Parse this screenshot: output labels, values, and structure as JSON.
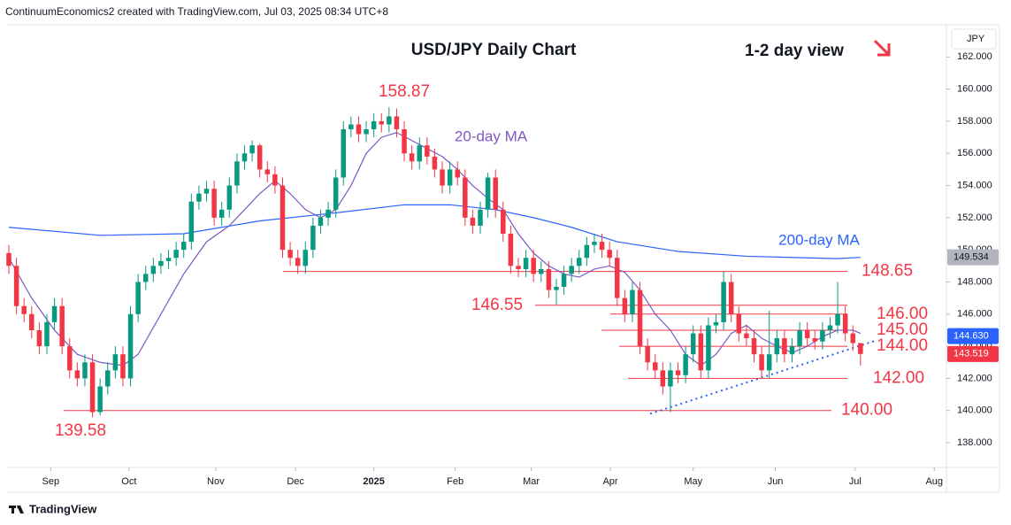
{
  "header": "ContinuumEconomics2 created with TradingView.com, Jul 03, 2025 08:34 UTC+8",
  "footer": "TradingView",
  "chart_data": {
    "type": "candlestick",
    "title": "USD/JPY Daily Chart",
    "subtitle": "1-2 day view",
    "y_axis_label": "JPY",
    "up_color": "#089981",
    "down_color": "#f23645",
    "open": [
      149.8,
      149.0,
      146.5,
      146.0,
      145.0,
      144.0,
      145.5,
      146.5,
      144.0,
      142.5,
      142.0,
      143.0,
      139.9,
      141.5,
      142.5,
      143.5,
      142.0,
      146.0,
      148.0,
      148.5,
      149.0,
      149.3,
      149.5,
      150.0,
      150.5,
      153.0,
      153.5,
      153.8,
      152.0,
      152.5,
      154.0,
      155.5,
      156.0,
      156.5,
      155.0,
      154.7,
      154.0,
      150.0,
      149.5,
      149.0,
      150.0,
      151.5,
      152.0,
      152.5,
      154.5,
      157.5,
      157.8,
      157.2,
      157.5,
      158.0,
      157.8,
      158.3,
      157.5,
      156.0,
      155.5,
      156.5,
      155.8,
      155.0,
      154.0,
      155.0,
      154.5,
      152.0,
      151.5,
      152.5,
      154.5,
      152.5,
      151.0,
      149.0,
      148.8,
      149.5,
      148.5,
      148.8,
      147.5,
      147.7,
      148.5,
      149.0,
      149.5,
      150.3,
      150.5,
      150.0,
      149.5,
      147.0,
      146.0,
      147.5,
      144.0,
      143.0,
      142.5,
      141.5,
      142.5,
      142.2,
      143.5,
      144.8,
      142.5,
      145.3,
      145.5,
      148.0,
      146.0,
      144.8,
      144.5,
      143.5,
      142.5,
      143.5,
      144.5,
      143.5,
      144.0,
      145.0,
      144.5,
      144.3,
      145.0,
      145.3,
      146.0,
      144.8,
      144.2
    ],
    "high": [
      150.3,
      149.5,
      147.0,
      146.5,
      145.5,
      146.0,
      147.0,
      147.0,
      144.5,
      143.0,
      143.5,
      143.5,
      142.0,
      143.0,
      144.0,
      144.0,
      146.5,
      148.5,
      149.0,
      149.5,
      149.8,
      150.0,
      150.5,
      151.0,
      153.5,
      154.0,
      154.3,
      154.3,
      153.0,
      154.5,
      156.0,
      156.5,
      156.8,
      156.6,
      155.5,
      155.2,
      154.5,
      150.5,
      150.0,
      150.5,
      152.0,
      152.5,
      153.0,
      155.0,
      158.0,
      158.3,
      158.3,
      158.0,
      158.5,
      158.5,
      158.87,
      158.8,
      158.0,
      156.5,
      157.0,
      157.0,
      156.3,
      155.5,
      155.5,
      155.5,
      155.0,
      152.5,
      153.0,
      154.8,
      155.0,
      153.0,
      151.5,
      149.5,
      150.0,
      150.0,
      149.3,
      149.3,
      148.2,
      149.0,
      149.5,
      150.0,
      150.8,
      151.0,
      151.0,
      150.5,
      150.0,
      147.5,
      148.0,
      148.0,
      144.5,
      143.5,
      143.0,
      143.0,
      143.0,
      144.0,
      145.3,
      145.3,
      145.8,
      146.0,
      148.65,
      148.5,
      146.5,
      145.3,
      145.0,
      144.0,
      146.2,
      145.0,
      145.0,
      144.5,
      145.5,
      145.5,
      145.0,
      145.5,
      145.8,
      148.0,
      146.5,
      145.3,
      144.2
    ],
    "low": [
      148.5,
      146.0,
      145.5,
      144.5,
      143.5,
      143.5,
      145.0,
      143.5,
      142.0,
      141.5,
      141.5,
      139.58,
      139.7,
      141.0,
      142.0,
      141.5,
      141.5,
      145.5,
      147.5,
      148.0,
      148.5,
      148.8,
      149.0,
      149.5,
      150.0,
      152.5,
      153.0,
      151.5,
      151.5,
      152.0,
      153.5,
      155.0,
      155.5,
      154.5,
      154.2,
      153.5,
      149.5,
      149.0,
      148.5,
      148.5,
      149.5,
      151.0,
      151.5,
      152.0,
      154.0,
      157.0,
      156.7,
      156.7,
      157.0,
      157.3,
      157.3,
      157.0,
      155.5,
      155.0,
      155.0,
      155.3,
      154.5,
      153.5,
      153.5,
      154.0,
      151.5,
      151.0,
      151.0,
      152.0,
      152.0,
      150.5,
      148.5,
      148.3,
      148.3,
      148.0,
      148.0,
      147.0,
      146.6,
      147.2,
      148.0,
      148.5,
      149.0,
      149.8,
      149.5,
      149.0,
      146.5,
      145.5,
      145.5,
      143.5,
      142.5,
      142.0,
      141.0,
      139.9,
      141.7,
      141.7,
      143.0,
      142.0,
      142.0,
      144.8,
      145.0,
      145.5,
      144.3,
      144.0,
      143.0,
      142.0,
      142.0,
      143.0,
      143.0,
      143.0,
      143.5,
      144.0,
      143.8,
      143.8,
      144.5,
      144.8,
      144.3,
      143.7,
      142.8
    ],
    "close": [
      149.0,
      146.5,
      146.0,
      145.0,
      144.0,
      145.5,
      146.5,
      144.0,
      142.5,
      142.0,
      143.0,
      139.9,
      141.5,
      142.5,
      143.5,
      142.0,
      146.0,
      148.0,
      148.5,
      149.0,
      149.3,
      149.5,
      150.0,
      150.5,
      153.0,
      153.5,
      153.8,
      152.0,
      152.5,
      154.0,
      155.5,
      156.0,
      156.5,
      155.0,
      154.7,
      154.0,
      150.0,
      149.5,
      149.0,
      150.0,
      151.5,
      152.0,
      152.5,
      154.5,
      157.5,
      157.8,
      157.2,
      157.5,
      158.0,
      157.8,
      158.3,
      157.5,
      156.0,
      155.5,
      156.5,
      155.8,
      155.0,
      154.0,
      155.0,
      154.5,
      152.0,
      151.5,
      152.5,
      154.5,
      152.5,
      151.0,
      149.0,
      148.8,
      149.5,
      148.5,
      148.8,
      147.5,
      147.7,
      148.5,
      149.0,
      149.5,
      150.3,
      150.5,
      150.0,
      149.5,
      147.0,
      146.0,
      147.5,
      144.0,
      143.0,
      142.5,
      141.5,
      142.5,
      142.2,
      143.5,
      144.8,
      142.5,
      145.3,
      145.5,
      148.0,
      146.0,
      144.8,
      144.5,
      143.5,
      142.5,
      143.5,
      144.5,
      143.5,
      144.0,
      145.0,
      144.5,
      144.3,
      145.0,
      145.3,
      146.0,
      144.8,
      144.2,
      143.52
    ],
    "series": [
      {
        "name": "20-day MA",
        "color": "#7e57c2",
        "x": [
          0,
          3,
          6,
          9,
          12,
          15,
          17,
          20,
          23,
          26,
          29,
          31,
          33,
          35,
          37,
          39,
          41,
          43,
          45,
          47,
          49,
          51,
          53,
          55,
          57,
          59,
          61,
          63,
          65,
          67,
          69,
          71,
          73,
          75,
          77,
          79,
          81,
          83,
          85,
          87,
          89,
          91,
          93,
          95,
          97,
          99,
          101,
          103,
          105,
          107,
          109,
          111,
          112
        ],
        "values": [
          149.5,
          147,
          145,
          143.5,
          143.0,
          142.8,
          143.5,
          146,
          148.5,
          150.5,
          151.5,
          152.5,
          153.5,
          154.3,
          153.5,
          152.5,
          152.0,
          152.5,
          154,
          156,
          157,
          157.3,
          156.8,
          156.3,
          155.8,
          155.0,
          154.0,
          153.2,
          152.5,
          151.0,
          149.8,
          149.0,
          148.5,
          148.3,
          148.8,
          149.0,
          148.6,
          147.5,
          146.0,
          145.0,
          143.5,
          142.8,
          143.5,
          144.8,
          145.3,
          144.5,
          144.0,
          143.6,
          144.0,
          144.6,
          145.0,
          145.0,
          144.8
        ]
      },
      {
        "name": "200-day MA",
        "color": "#2962ff",
        "x": [
          0,
          12,
          23,
          33,
          43,
          52,
          58,
          64,
          69,
          74,
          80,
          88,
          97,
          109,
          112
        ],
        "values": [
          151.4,
          150.9,
          151.0,
          151.8,
          152.3,
          152.8,
          152.8,
          152.5,
          152.0,
          151.4,
          150.5,
          149.9,
          149.6,
          149.45,
          149.53
        ]
      }
    ],
    "annotations": {
      "high": 158.87,
      "low": 139.58
    },
    "levels": [
      148.65,
      146.55,
      {
        "value": 146,
        "label": "146.00"
      },
      {
        "value": 145,
        "label": "145.00"
      },
      {
        "value": 144,
        "label": "144.00"
      },
      {
        "value": 142,
        "label": "142.00"
      },
      {
        "value": 140,
        "label": "140.00"
      }
    ],
    "level_color": "#f23645",
    "price_labels": [
      149.534,
      {
        "value": 144.63,
        "label": "144.630"
      },
      143.519
    ],
    "price_label_colors": [
      "#b2b5be",
      "#2962ff",
      "#f23645"
    ],
    "xlim": [
      0,
      123.3
    ],
    "xticks": [
      {
        "value": 5.5,
        "label": "Sep"
      },
      {
        "value": 15.8,
        "label": "Oct"
      },
      {
        "value": 27.2,
        "label": "Nov"
      },
      {
        "value": 37.7,
        "label": "Dec"
      },
      {
        "value": 48.0,
        "label": "2025"
      },
      {
        "value": 58.7,
        "label": "Feb"
      },
      {
        "value": 68.7,
        "label": "Mar"
      },
      {
        "value": 79.1,
        "label": "Apr"
      },
      {
        "value": 90.0,
        "label": "May"
      },
      {
        "value": 100.8,
        "label": "Jun"
      },
      {
        "value": 111.3,
        "label": "Jul"
      },
      {
        "value": 121.7,
        "label": "Aug"
      }
    ],
    "ylim": [
      136.46,
      164
    ],
    "yticks": [
      {
        "value": 138,
        "label": "138.000"
      },
      {
        "value": 140,
        "label": "140.000"
      },
      {
        "value": 142,
        "label": "142.000"
      },
      {
        "value": 144,
        "label": "144.000"
      },
      {
        "value": 146,
        "label": "146.000"
      },
      {
        "value": 148,
        "label": "148.000"
      },
      {
        "value": 150,
        "label": "150.000"
      },
      {
        "value": 152,
        "label": "152.000"
      },
      {
        "value": 154,
        "label": "154.000"
      },
      {
        "value": 156,
        "label": "156.000"
      },
      {
        "value": 158,
        "label": "158.000"
      },
      {
        "value": 160,
        "label": "160.000"
      },
      {
        "value": 162,
        "label": "162.000"
      }
    ]
  }
}
